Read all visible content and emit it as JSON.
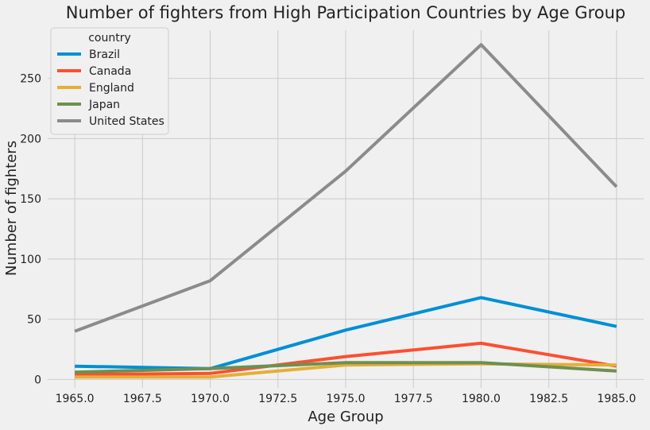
{
  "chart_data": {
    "type": "line",
    "title": "Number of fighters from High Participation Countries by Age Group",
    "xlabel": "Age Group",
    "ylabel": "Number of fighters",
    "x": [
      1965,
      1970,
      1975,
      1980,
      1985
    ],
    "xlim": [
      1964,
      1986
    ],
    "ylim": [
      -7,
      290
    ],
    "x_ticks": [
      1965.0,
      1967.5,
      1970.0,
      1972.5,
      1975.0,
      1977.5,
      1980.0,
      1982.5,
      1985.0
    ],
    "x_tick_labels": [
      "1965.0",
      "1967.5",
      "1970.0",
      "1972.5",
      "1975.0",
      "1977.5",
      "1980.0",
      "1982.5",
      "1985.0"
    ],
    "y_ticks": [
      0,
      50,
      100,
      150,
      200,
      250
    ],
    "y_tick_labels": [
      "0",
      "50",
      "100",
      "150",
      "200",
      "250"
    ],
    "grid": true,
    "legend": {
      "title": "country",
      "position": "top-left"
    },
    "series": [
      {
        "name": "Brazil",
        "color": "#008fd5",
        "values": [
          11,
          9,
          41,
          68,
          44
        ]
      },
      {
        "name": "Canada",
        "color": "#fc4f30",
        "values": [
          4,
          5,
          19,
          30,
          11
        ]
      },
      {
        "name": "England",
        "color": "#e5ae38",
        "values": [
          2,
          2,
          12,
          13,
          12
        ]
      },
      {
        "name": "Japan",
        "color": "#6d904f",
        "values": [
          6,
          9,
          14,
          14,
          7
        ]
      },
      {
        "name": "United States",
        "color": "#8b8b8b",
        "values": [
          40,
          82,
          173,
          278,
          160
        ]
      }
    ]
  }
}
